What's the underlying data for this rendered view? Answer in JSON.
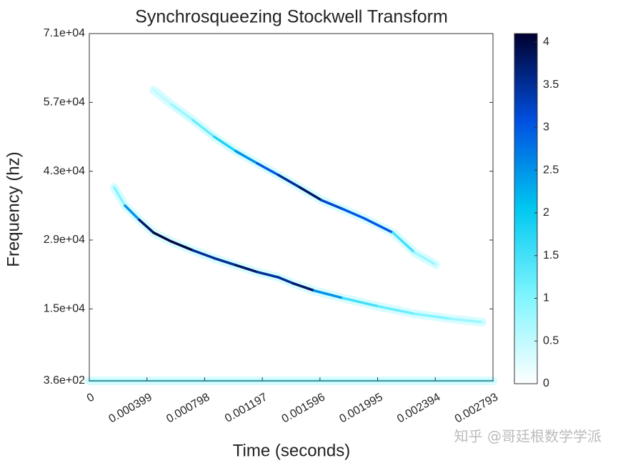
{
  "chart_data": {
    "type": "spectrogram",
    "title": "Synchrosqueezing Stockwell Transform",
    "x_label": "Time (seconds)",
    "y_label": "Frequency (hz)",
    "watermark": "知乎 @哥廷根数学学派",
    "xlim": [
      0,
      0.002793
    ],
    "xticks": [
      0,
      0.000399,
      0.000798,
      0.001197,
      0.001596,
      0.001995,
      0.002394,
      0.002793
    ],
    "ylim": [
      360,
      71000
    ],
    "yticks": [
      {
        "value": 360,
        "label": "3.6e+02"
      },
      {
        "value": 15000,
        "label": "1.5e+04"
      },
      {
        "value": 29000,
        "label": "2.9e+04"
      },
      {
        "value": 43000,
        "label": "4.3e+04"
      },
      {
        "value": 57000,
        "label": "5.7e+04"
      },
      {
        "value": 71000,
        "label": "7.1e+04"
      }
    ],
    "clim": [
      0,
      4.1
    ],
    "cticks": [
      0,
      0.5,
      1,
      1.5,
      2,
      2.5,
      3,
      3.5,
      4
    ],
    "colormap": [
      "#ffffff",
      "#7ff5ff",
      "#00c8f0",
      "#0050e0",
      "#000030"
    ],
    "series": [
      {
        "x": [
          0.000173,
          0.000247,
          0.000346,
          0.000445,
          0.000568,
          0.000717,
          0.000865,
          0.001013,
          0.001162,
          0.00131,
          0.001409,
          0.001557,
          0.001755,
          0.002002,
          0.002249,
          0.002496,
          0.002719
        ],
        "values": [
          39700,
          36000,
          33100,
          30500,
          28700,
          26900,
          25300,
          23900,
          22500,
          21400,
          20200,
          18700,
          17200,
          15500,
          14000,
          13000,
          12300
        ],
        "intensity": [
          1.0,
          2.5,
          3.8,
          4.0,
          4.0,
          3.5,
          3.5,
          3.8,
          3.5,
          3.5,
          3.8,
          2.5,
          1.5,
          1.2,
          1.0,
          0.8,
          0.6
        ]
      },
      {
        "x": [
          0.000445,
          0.000568,
          0.000717,
          0.000865,
          0.001013,
          0.001162,
          0.00131,
          0.001458,
          0.001607,
          0.001755,
          0.001903,
          0.002101,
          0.002249,
          0.002397
        ],
        "values": [
          59500,
          56600,
          53400,
          50000,
          47100,
          44600,
          42200,
          39700,
          37100,
          35300,
          33400,
          30500,
          26500,
          24000
        ],
        "intensity": [
          0.5,
          0.8,
          1.2,
          1.8,
          2.5,
          3.0,
          3.5,
          3.8,
          3.2,
          3.0,
          3.0,
          1.5,
          0.8,
          0.5
        ]
      },
      {
        "x": [
          0,
          0.002793
        ],
        "values": [
          360,
          360
        ],
        "intensity": [
          1.0,
          1.0
        ]
      }
    ]
  }
}
